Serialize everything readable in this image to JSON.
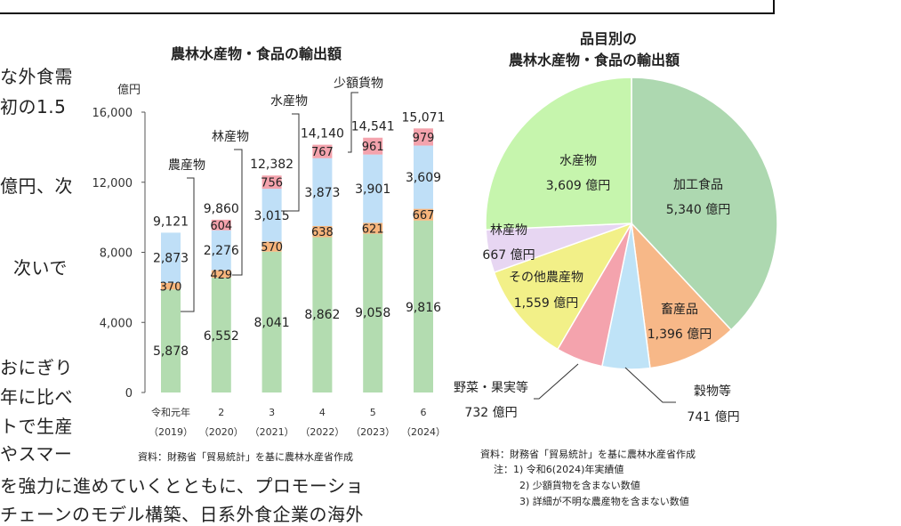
{
  "background_text": [
    "な外食需",
    "初の1.5",
    "億円、次",
    "次いで",
    "おにぎり",
    "年に比べ",
    "トで生産",
    "やスマー",
    "を強力に進めていくとともに、プロモーショ",
    "チェーンのモデル構築、日系外食企業の海外"
  ],
  "bar_chart": {
    "title": "農林水産物・食品の輸出額",
    "source": "資料：財務省「貿易統計」を基に農林水産省作成"
  },
  "pie_chart": {
    "title_line1": "品目別の",
    "title_line2": "農林水産物・食品の輸出額",
    "source": "資料：財務省「貿易統計」を基に農林水産省作成",
    "notes": [
      "注：1) 令和6(2024)年実績値",
      "2) 少額貨物を含まない数値",
      "3) 詳細が不明な農産物を含まない数値"
    ]
  },
  "colors": {
    "agri": "#b3dcb0",
    "forest": "#6fb6e6",
    "fish": "#bfdff7",
    "small": "#f4a3ad",
    "forest_bar": "#f7b57c",
    "pie_processed": "#add8b0",
    "pie_livestock": "#f7b888",
    "pie_grain": "#bfe3f7",
    "pie_veg": "#f4a3ad",
    "pie_otheragri": "#f2f088",
    "pie_forest": "#e7d6f2",
    "pie_fish": "#c6f5ad"
  },
  "chart_data": [
    {
      "type": "bar",
      "stacked": true,
      "title": "農林水産物・食品の輸出額",
      "ylabel": "億円",
      "ylim": [
        0,
        16000
      ],
      "yticks": [
        "0",
        "4,000",
        "8,000",
        "12,000",
        "16,000"
      ],
      "categories": [
        "令和元年",
        "2",
        "3",
        "4",
        "5",
        "6"
      ],
      "categories_sub": [
        "（2019）",
        "（2020）",
        "（2021）",
        "（2022）",
        "（2023）",
        "（2024）"
      ],
      "series": [
        {
          "name": "農産物",
          "values": [
            5878,
            6552,
            8041,
            8862,
            9058,
            9816
          ],
          "labels": [
            "5,878",
            "6,552",
            "8,041",
            "8,862",
            "9,058",
            "9,816"
          ]
        },
        {
          "name": "林産物",
          "values": [
            370,
            429,
            570,
            638,
            621,
            667
          ],
          "labels": [
            "370",
            "429",
            "570",
            "638",
            "621",
            "667"
          ]
        },
        {
          "name": "水産物",
          "values": [
            2873,
            2276,
            3015,
            3873,
            3901,
            3609
          ],
          "labels": [
            "2,873",
            "2,276",
            "3,015",
            "3,873",
            "3,901",
            "3,609"
          ]
        },
        {
          "name": "少額貨物",
          "values": [
            0,
            604,
            756,
            767,
            961,
            979
          ],
          "labels": [
            "",
            "604",
            "756",
            "767",
            "961",
            "979"
          ]
        }
      ],
      "totals": [
        "9,121",
        "9,860",
        "12,382",
        "14,140",
        "14,541",
        "15,071"
      ]
    },
    {
      "type": "pie",
      "title": "品目別の農林水産物・食品の輸出額",
      "slices": [
        {
          "name": "加工食品",
          "value": 5340,
          "label": "5,340 億円"
        },
        {
          "name": "畜産品",
          "value": 1396,
          "label": "1,396 億円"
        },
        {
          "name": "穀物等",
          "value": 741,
          "label": "741 億円"
        },
        {
          "name": "野菜・果実等",
          "value": 732,
          "label": "732 億円"
        },
        {
          "name": "その他農産物",
          "value": 1559,
          "label": "1,559 億円"
        },
        {
          "name": "林産物",
          "value": 667,
          "label": "667 億円"
        },
        {
          "name": "水産物",
          "value": 3609,
          "label": "3,609 億円"
        }
      ]
    }
  ]
}
